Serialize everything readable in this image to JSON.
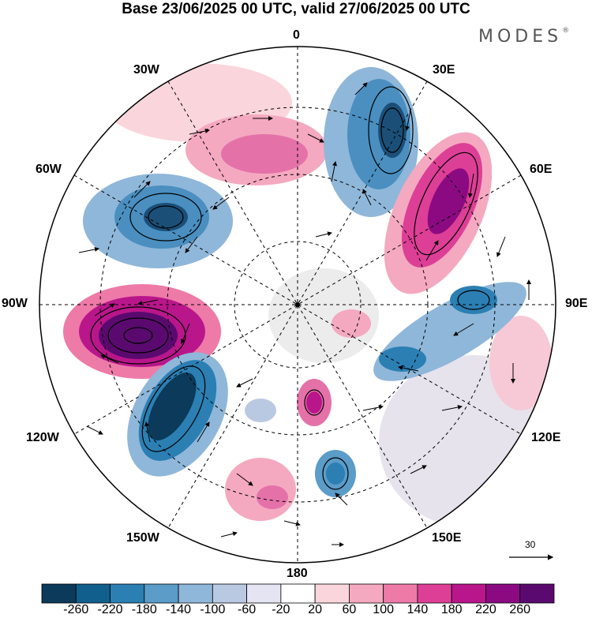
{
  "title": "Base 23/06/2025 00 UTC, valid 27/06/2025 00 UTC",
  "brand": "MODES",
  "brand_mark": "®",
  "longitude_labels": {
    "top": "0",
    "lon30e": "30E",
    "lon60e": "60E",
    "lon90e": "90E",
    "lon120e": "120E",
    "lon150e": "150E",
    "bottom": "180",
    "lon150w": "150W",
    "lon120w": "120W",
    "lon90w": "90W",
    "lon60w": "60W",
    "lon30w": "30W"
  },
  "reference_vector": "30",
  "colorbar": {
    "colors": [
      "#0b3a5a",
      "#115f8c",
      "#2b7fb3",
      "#5b9cc8",
      "#8fb7d9",
      "#bac9e2",
      "#e4e4f2",
      "#ffffff",
      "#fad6dc",
      "#f4a9c0",
      "#ee7aa8",
      "#dd3f96",
      "#b9168b",
      "#8b0a82",
      "#5a0a6e"
    ],
    "ticks": [
      "-260",
      "-220",
      "-180",
      "-140",
      "-100",
      "-60",
      "-20",
      "20",
      "60",
      "100",
      "140",
      "180",
      "220",
      "260"
    ]
  },
  "colors": {
    "negative_strong": "#1b4f78",
    "negative_mid": "#4a8fc0",
    "negative_light": "#c4d3e8",
    "positive_light": "#f7c9d6",
    "positive_mid": "#e472a8",
    "positive_strong": "#7d0f86",
    "land": "#d9d9d9"
  }
}
